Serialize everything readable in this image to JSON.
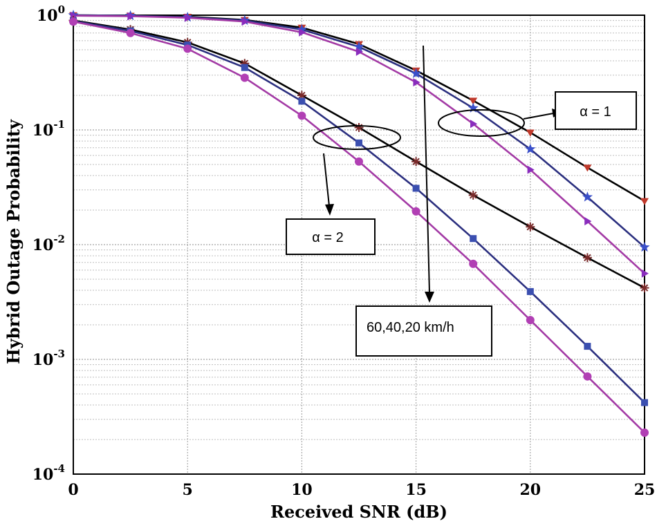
{
  "chart_data": {
    "type": "line",
    "title": "",
    "xlabel": "Received SNR (dB)",
    "ylabel": "Hybrid Outage Probability",
    "xscale": "linear",
    "yscale": "log",
    "xlim": [
      0,
      25
    ],
    "ylim": [
      0.0001,
      1
    ],
    "grid": true,
    "xticks": [
      0,
      5,
      10,
      15,
      20,
      25
    ],
    "yticks": [
      {
        "value": 1,
        "base": "10",
        "exp": "0"
      },
      {
        "value": 0.1,
        "base": "10",
        "exp": "-1"
      },
      {
        "value": 0.01,
        "base": "10",
        "exp": "-2"
      },
      {
        "value": 0.001,
        "base": "10",
        "exp": "-3"
      },
      {
        "value": 0.0001,
        "base": "10",
        "exp": "-4"
      }
    ],
    "x": [
      0,
      2.5,
      5,
      7.5,
      10,
      12.5,
      15,
      17.5,
      20,
      22.5,
      25
    ],
    "series": [
      {
        "name": "alpha=1, 60 km/h",
        "color": "#000000",
        "marker": "triangle-down",
        "marker_color": "#c0392b",
        "values": [
          1.0,
          0.99,
          0.97,
          0.91,
          0.78,
          0.56,
          0.33,
          0.18,
          0.095,
          0.047,
          0.024
        ]
      },
      {
        "name": "alpha=1, 40 km/h",
        "color": "#2b2f7f",
        "marker": "star",
        "marker_color": "#3a4fc9",
        "values": [
          1.0,
          0.99,
          0.96,
          0.9,
          0.75,
          0.53,
          0.31,
          0.155,
          0.068,
          0.026,
          0.0095
        ]
      },
      {
        "name": "alpha=1, 20 km/h",
        "color": "#a33aa5",
        "marker": "triangle-right",
        "marker_color": "#8a2dbd",
        "values": [
          0.99,
          0.98,
          0.95,
          0.88,
          0.71,
          0.48,
          0.26,
          0.113,
          0.045,
          0.016,
          0.0056
        ]
      },
      {
        "name": "alpha=2, 60 km/h",
        "color": "#000000",
        "marker": "asterisk",
        "marker_color": "#7a2a2a",
        "values": [
          0.9,
          0.75,
          0.58,
          0.38,
          0.2,
          0.105,
          0.053,
          0.027,
          0.0143,
          0.0077,
          0.0042
        ]
      },
      {
        "name": "alpha=2, 40 km/h",
        "color": "#2b2f7f",
        "marker": "square",
        "marker_color": "#3b4fb0",
        "values": [
          0.89,
          0.73,
          0.55,
          0.35,
          0.178,
          0.077,
          0.031,
          0.0113,
          0.0039,
          0.0013,
          0.00042
        ]
      },
      {
        "name": "alpha=2, 20 km/h",
        "color": "#a33aa5",
        "marker": "circle",
        "marker_color": "#b13fb4",
        "values": [
          0.88,
          0.7,
          0.51,
          0.285,
          0.133,
          0.053,
          0.0195,
          0.0068,
          0.0022,
          0.00071,
          0.00023
        ]
      }
    ],
    "annotations": [
      {
        "id": "alpha1",
        "text": "α = 1",
        "pointer_x": 18.9,
        "pointer_y": 0.1
      },
      {
        "id": "alpha2",
        "text": "α = 2",
        "pointer_x": 12.4,
        "pointer_y": 0.088
      },
      {
        "id": "speeds",
        "text": "60,40,20 km/h"
      }
    ]
  }
}
